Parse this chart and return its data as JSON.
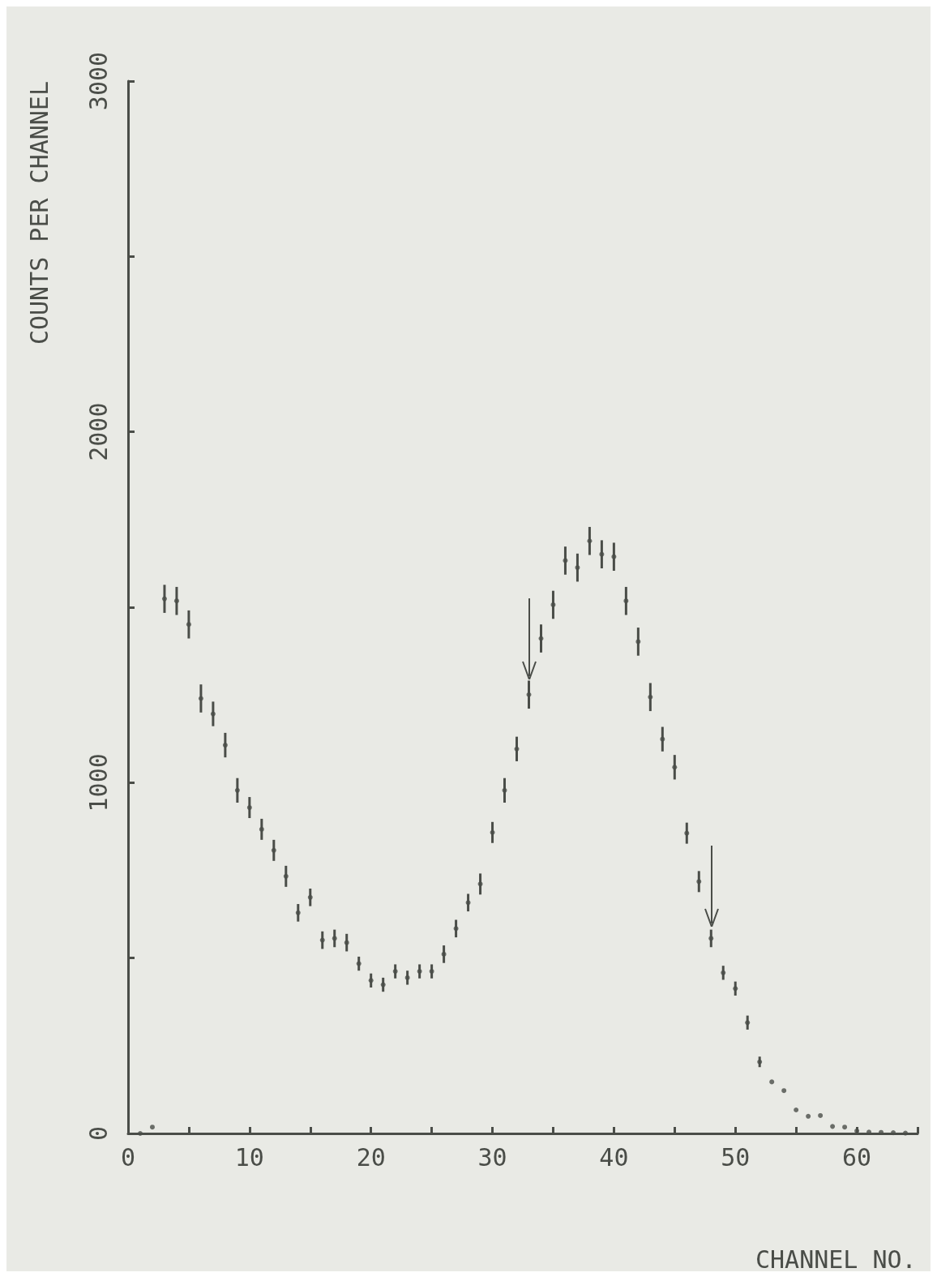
{
  "chart_data": {
    "type": "scatter",
    "xlabel": "CHANNEL NO.",
    "ylabel": "COUNTS PER CHANNEL",
    "x": [
      1,
      2,
      3,
      4,
      5,
      6,
      7,
      8,
      9,
      10,
      11,
      12,
      13,
      14,
      15,
      16,
      17,
      18,
      19,
      20,
      21,
      22,
      23,
      24,
      25,
      26,
      27,
      28,
      29,
      30,
      31,
      32,
      33,
      34,
      35,
      36,
      37,
      38,
      39,
      40,
      41,
      42,
      43,
      44,
      45,
      46,
      47,
      48,
      49,
      50,
      51,
      52,
      53,
      54,
      55,
      56,
      57,
      58,
      59,
      60,
      61,
      62,
      63,
      64
    ],
    "series": [
      {
        "color": "#4a4d48",
        "values": [
          0,
          18,
          1524,
          1518,
          1451,
          1240,
          1196,
          1107,
          978,
          929,
          867,
          807,
          733,
          629,
          673,
          551,
          556,
          544,
          484,
          436,
          424,
          462,
          444,
          462,
          462,
          511,
          584,
          658,
          711,
          858,
          978,
          1096,
          1251,
          1411,
          1507,
          1633,
          1613,
          1689,
          1651,
          1644,
          1518,
          1402,
          1244,
          1124,
          1044,
          856,
          718,
          556,
          458,
          413,
          316,
          204,
          147,
          122,
          67,
          49,
          51,
          20,
          18,
          7,
          4,
          3,
          2,
          1
        ],
        "errors": [
          null,
          null,
          40,
          40,
          40,
          40,
          35,
          35,
          35,
          30,
          30,
          30,
          30,
          25,
          25,
          25,
          25,
          25,
          20,
          20,
          20,
          20,
          20,
          20,
          20,
          25,
          25,
          25,
          30,
          30,
          35,
          35,
          40,
          40,
          40,
          40,
          40,
          40,
          40,
          40,
          40,
          40,
          40,
          35,
          35,
          30,
          30,
          25,
          20,
          20,
          20,
          15,
          null,
          null,
          null,
          null,
          null,
          null,
          null,
          null,
          null,
          null,
          null,
          null
        ]
      }
    ],
    "marker": "circle",
    "xlim": [
      0,
      65
    ],
    "xticks": [
      0,
      {
        "value": 5,
        "label": null
      },
      10,
      {
        "value": 15,
        "label": null
      },
      20,
      {
        "value": 25,
        "label": null
      },
      30,
      {
        "value": 35,
        "label": null
      },
      40,
      {
        "value": 45,
        "label": null
      },
      50,
      {
        "value": 55,
        "label": null
      },
      60,
      {
        "value": 65,
        "label": null
      }
    ],
    "ylim": [
      0,
      3000
    ],
    "yticks": [
      0,
      {
        "value": 500,
        "label": null
      },
      1000,
      {
        "value": 1500,
        "label": null
      },
      2000,
      {
        "value": 2500,
        "label": null
      },
      3000
    ],
    "grid": false
  }
}
